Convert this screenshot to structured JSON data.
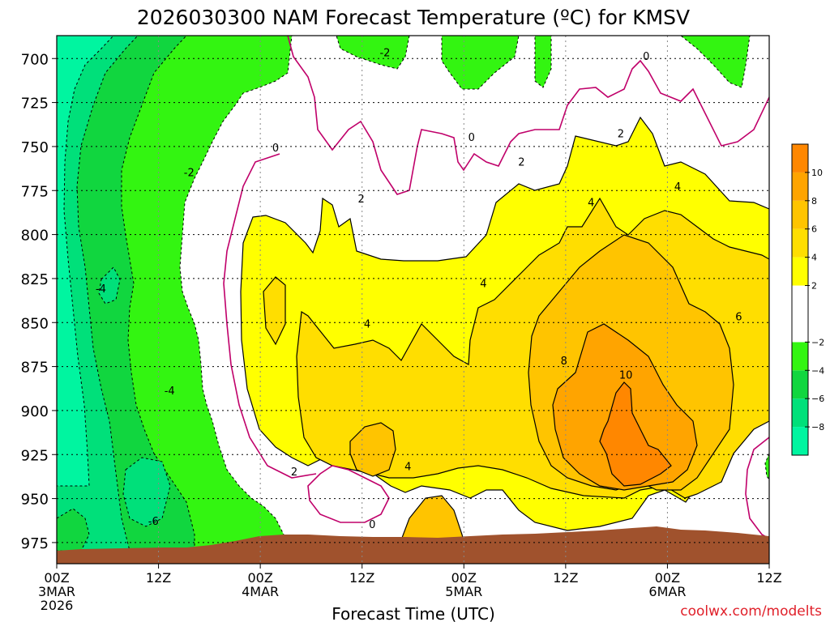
{
  "chart_data": {
    "type": "heatmap",
    "title": "2026030300 NAM Forecast Temperature (ºC) for KMSV",
    "xlabel": "Forecast Time (UTC)",
    "ylabel": "",
    "credit": "coolwx.com/modelts",
    "xlim": [
      0,
      84
    ],
    "ylim": [
      987,
      687
    ],
    "y_ticks": [
      700,
      725,
      750,
      775,
      800,
      825,
      850,
      875,
      900,
      925,
      950,
      975
    ],
    "x_ticks": [
      {
        "h": 0,
        "lines": [
          "00Z",
          "3MAR",
          "2026"
        ]
      },
      {
        "h": 12,
        "lines": [
          "12Z"
        ]
      },
      {
        "h": 24,
        "lines": [
          "00Z",
          "4MAR"
        ]
      },
      {
        "h": 36,
        "lines": [
          "12Z"
        ]
      },
      {
        "h": 48,
        "lines": [
          "00Z",
          "5MAR"
        ]
      },
      {
        "h": 60,
        "lines": [
          "12Z"
        ]
      },
      {
        "h": 72,
        "lines": [
          "00Z",
          "6MAR"
        ]
      },
      {
        "h": 84,
        "lines": [
          "12Z"
        ]
      }
    ],
    "colorbar": [
      {
        "lo": -10,
        "hi": -8,
        "color": "#00f5a0"
      },
      {
        "lo": -8,
        "hi": -6,
        "color": "#00e07a"
      },
      {
        "lo": -6,
        "hi": -4,
        "color": "#11d63f"
      },
      {
        "lo": -4,
        "hi": -2,
        "color": "#33f511"
      },
      {
        "lo": -2,
        "hi": 0,
        "color": "#ffffff"
      },
      {
        "lo": 0,
        "hi": 2,
        "color": "#ffffff"
      },
      {
        "lo": 2,
        "hi": 4,
        "color": "#ffff00"
      },
      {
        "lo": 4,
        "hi": 6,
        "color": "#ffde00"
      },
      {
        "lo": 6,
        "hi": 8,
        "color": "#ffc400"
      },
      {
        "lo": 8,
        "hi": 10,
        "color": "#ffa400"
      },
      {
        "lo": 10,
        "hi": 12,
        "color": "#ff8700"
      }
    ],
    "colorbar_labels": [
      "10",
      "8",
      "6",
      "4",
      "2",
      "−2",
      "−4",
      "−6",
      "−8"
    ],
    "colorbar_label_values": [
      10,
      8,
      6,
      4,
      2,
      -2,
      -4,
      -6,
      -8
    ],
    "terrain_color": "#a0522d",
    "zero_isotherm_color": "#c0006a",
    "contour_labels": [
      {
        "text": "-2",
        "t": 38.7,
        "p": 697
      },
      {
        "text": "0",
        "t": 69.5,
        "p": 699
      },
      {
        "text": "2",
        "t": 66.5,
        "p": 743
      },
      {
        "text": "0",
        "t": 25.8,
        "p": 751
      },
      {
        "text": "0",
        "t": 48.9,
        "p": 745
      },
      {
        "text": "2",
        "t": 54.8,
        "p": 759
      },
      {
        "text": "-2",
        "t": 15.6,
        "p": 765
      },
      {
        "text": "2",
        "t": 35.9,
        "p": 780
      },
      {
        "text": "4",
        "t": 63.0,
        "p": 782
      },
      {
        "text": "4",
        "t": 73.2,
        "p": 773
      },
      {
        "text": "4",
        "t": 50.3,
        "p": 828
      },
      {
        "text": "-4",
        "t": 5.2,
        "p": 831
      },
      {
        "text": "4",
        "t": 36.6,
        "p": 851
      },
      {
        "text": "6",
        "t": 80.4,
        "p": 847
      },
      {
        "text": "8",
        "t": 59.8,
        "p": 872
      },
      {
        "text": "10",
        "t": 67.1,
        "p": 880
      },
      {
        "text": "-4",
        "t": 13.3,
        "p": 889
      },
      {
        "text": "2",
        "t": 28.0,
        "p": 935
      },
      {
        "text": "4",
        "t": 41.4,
        "p": 932
      },
      {
        "text": "-6",
        "t": 11.4,
        "p": 963
      },
      {
        "text": "0",
        "t": 37.2,
        "p": 965
      }
    ]
  }
}
